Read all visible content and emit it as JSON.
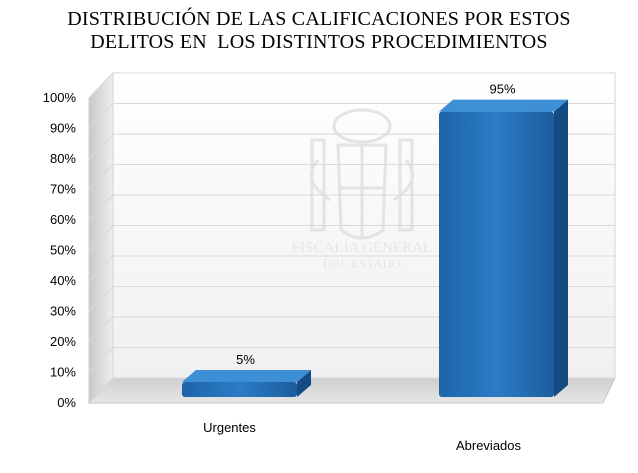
{
  "chart_data": {
    "type": "bar",
    "title_lines": [
      "DISTRIBUCIÓN DE LAS CALIFICACIONES POR ESTOS",
      "DELITOS EN  LOS DISTINTOS PROCEDIMIENTOS"
    ],
    "categories": [
      "Urgentes",
      "Abreviados"
    ],
    "values": [
      5,
      95
    ],
    "data_labels": [
      "5%",
      "95%"
    ],
    "ylim": [
      0,
      100
    ],
    "yticks": [
      "0%",
      "10%",
      "20%",
      "30%",
      "40%",
      "50%",
      "60%",
      "70%",
      "80%",
      "90%",
      "100%"
    ],
    "grid": true,
    "three_d": true,
    "bar_color": "#1f6fb5"
  },
  "watermark": {
    "line1": "FISCALÍA GENERAL",
    "line2": "DEL ESTADO"
  }
}
